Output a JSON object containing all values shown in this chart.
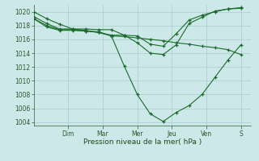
{
  "background_color": "#cce8e8",
  "grid_color": "#aacccc",
  "line_color": "#1a6b2a",
  "marker_color": "#1a6b2a",
  "xlabel": "Pression niveau de la mer( hPa )",
  "ylim": [
    1003.5,
    1021.0
  ],
  "yticks": [
    1004,
    1006,
    1008,
    1010,
    1012,
    1014,
    1016,
    1018,
    1020
  ],
  "day_labels": [
    "Dim",
    "Mar",
    "Mer",
    "Jeu",
    "Ven",
    "S"
  ],
  "day_positions": [
    1,
    2,
    3,
    4,
    5,
    6
  ],
  "xlim": [
    0,
    6.3
  ],
  "series": [
    [
      1020.0,
      1019.0,
      1018.2,
      1017.5,
      1017.3,
      1017.0,
      1016.6,
      1016.6,
      1016.5,
      1015.3,
      1015.0,
      1016.8,
      1018.8,
      1019.5,
      1020.0,
      1020.4,
      1020.6
    ],
    [
      1019.3,
      1018.3,
      1017.5,
      1017.5,
      1017.5,
      1017.4,
      1017.4,
      1016.6,
      1015.5,
      1014.0,
      1013.8,
      1015.2,
      1018.3,
      1019.2,
      1020.1,
      1020.4,
      1020.5
    ],
    [
      1019.0,
      1018.0,
      1017.4,
      1017.4,
      1017.2,
      1017.1,
      1016.5,
      1012.1,
      1008.0,
      1005.2,
      1004.1,
      1005.4,
      1006.4,
      1008.0,
      1010.5,
      1013.0,
      1015.2
    ],
    [
      1019.0,
      1017.8,
      1017.3,
      1017.3,
      1017.2,
      1017.0,
      1016.5,
      1016.4,
      1016.2,
      1016.0,
      1015.8,
      1015.5,
      1015.3,
      1015.0,
      1014.8,
      1014.5,
      1013.8
    ]
  ],
  "n_points": 17,
  "x_start": 0,
  "x_end": 6.0
}
